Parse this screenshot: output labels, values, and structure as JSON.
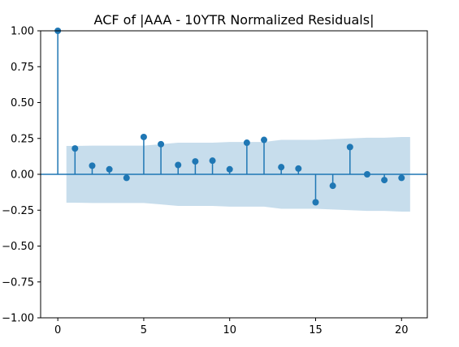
{
  "chart_data": {
    "type": "stem",
    "title": "ACF of |AAA - 10YTR Normalized Residuals|",
    "xlabel": "",
    "ylabel": "",
    "xlim": [
      -1,
      21.5
    ],
    "ylim": [
      -1.0,
      1.0
    ],
    "xticks": [
      0,
      5,
      10,
      15,
      20
    ],
    "xtick_labels": [
      "0",
      "5",
      "10",
      "15",
      "20"
    ],
    "yticks": [
      -1.0,
      -0.75,
      -0.5,
      -0.25,
      0.0,
      0.25,
      0.5,
      0.75,
      1.0
    ],
    "ytick_labels": [
      "−1.00",
      "−0.75",
      "−0.50",
      "−0.25",
      "0.00",
      "0.25",
      "0.50",
      "0.75",
      "1.00"
    ],
    "grid": false,
    "colors": {
      "stem": "#1f77b4",
      "band": "#1f77b4",
      "band_opacity": 0.25
    },
    "lags": [
      0,
      1,
      2,
      3,
      4,
      5,
      6,
      7,
      8,
      9,
      10,
      11,
      12,
      13,
      14,
      15,
      16,
      17,
      18,
      19,
      20
    ],
    "acf": [
      1.0,
      0.18,
      0.06,
      0.035,
      -0.025,
      0.26,
      0.21,
      0.065,
      0.09,
      0.095,
      0.035,
      0.22,
      0.24,
      0.05,
      0.04,
      -0.195,
      -0.08,
      0.19,
      0.0,
      -0.04,
      -0.025
    ],
    "confidence_band": {
      "x_start": 0.5,
      "x_end": 20.5,
      "x": [
        0.5,
        1,
        2,
        3,
        4,
        5,
        6,
        7,
        8,
        9,
        10,
        11,
        12,
        13,
        14,
        15,
        16,
        17,
        18,
        19,
        20,
        20.5
      ],
      "upper": [
        0.198,
        0.198,
        0.2,
        0.2,
        0.2,
        0.2,
        0.21,
        0.22,
        0.22,
        0.22,
        0.225,
        0.225,
        0.225,
        0.24,
        0.24,
        0.24,
        0.245,
        0.25,
        0.255,
        0.255,
        0.26,
        0.26
      ],
      "lower": [
        -0.198,
        -0.198,
        -0.2,
        -0.2,
        -0.2,
        -0.2,
        -0.21,
        -0.22,
        -0.22,
        -0.22,
        -0.225,
        -0.225,
        -0.225,
        -0.24,
        -0.24,
        -0.24,
        -0.245,
        -0.25,
        -0.255,
        -0.255,
        -0.26,
        -0.26
      ]
    }
  }
}
